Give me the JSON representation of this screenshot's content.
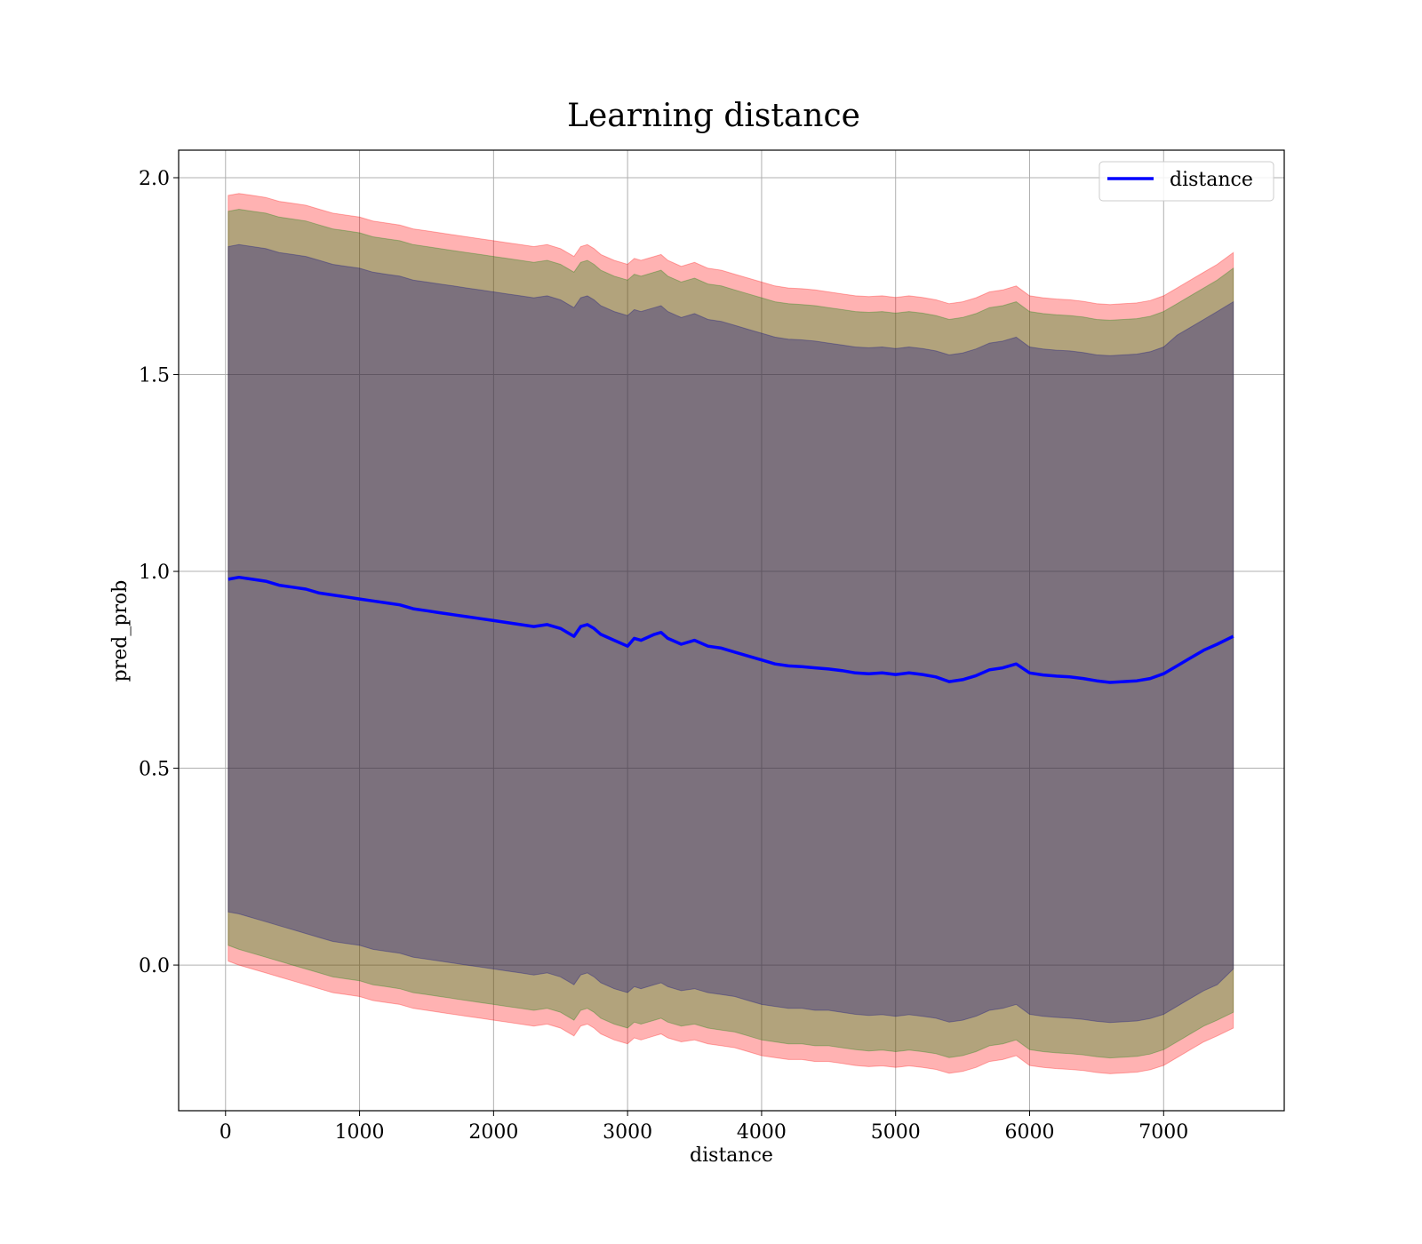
{
  "chart_data": {
    "type": "line",
    "title": "Learning distance",
    "xlabel": "distance",
    "ylabel": "pred_prob",
    "xlim": [
      -350,
      7900
    ],
    "ylim": [
      -0.37,
      2.07
    ],
    "xticks": [
      0,
      1000,
      2000,
      3000,
      4000,
      5000,
      6000,
      7000
    ],
    "xtick_labels": [
      "0",
      "1000",
      "2000",
      "3000",
      "4000",
      "5000",
      "6000",
      "7000"
    ],
    "yticks": [
      0.0,
      0.5,
      1.0,
      1.5,
      2.0
    ],
    "ytick_labels": [
      "0.0",
      "0.5",
      "1.0",
      "1.5",
      "2.0"
    ],
    "grid": true,
    "legend_position": "top-right",
    "series": [
      {
        "name": "distance",
        "color": "#0000ff",
        "x": [
          20,
          100,
          200,
          300,
          400,
          500,
          600,
          700,
          800,
          900,
          1000,
          1100,
          1200,
          1300,
          1400,
          1500,
          1600,
          1700,
          1800,
          1900,
          2000,
          2100,
          2200,
          2300,
          2400,
          2500,
          2600,
          2650,
          2700,
          2750,
          2800,
          2900,
          3000,
          3050,
          3100,
          3200,
          3250,
          3300,
          3400,
          3500,
          3600,
          3700,
          3800,
          3900,
          4000,
          4100,
          4200,
          4300,
          4400,
          4500,
          4600,
          4700,
          4800,
          4900,
          5000,
          5100,
          5200,
          5300,
          5400,
          5500,
          5600,
          5700,
          5800,
          5900,
          6000,
          6100,
          6200,
          6300,
          6400,
          6500,
          6600,
          6700,
          6800,
          6900,
          7000,
          7100,
          7200,
          7300,
          7400,
          7520
        ],
        "values": [
          0.98,
          0.985,
          0.98,
          0.975,
          0.965,
          0.96,
          0.955,
          0.945,
          0.94,
          0.935,
          0.93,
          0.925,
          0.92,
          0.915,
          0.905,
          0.9,
          0.895,
          0.89,
          0.885,
          0.88,
          0.875,
          0.87,
          0.865,
          0.86,
          0.865,
          0.855,
          0.835,
          0.86,
          0.865,
          0.855,
          0.84,
          0.825,
          0.81,
          0.83,
          0.825,
          0.84,
          0.845,
          0.83,
          0.815,
          0.825,
          0.81,
          0.805,
          0.795,
          0.785,
          0.775,
          0.765,
          0.76,
          0.758,
          0.755,
          0.752,
          0.748,
          0.742,
          0.74,
          0.742,
          0.738,
          0.742,
          0.738,
          0.732,
          0.72,
          0.725,
          0.735,
          0.75,
          0.755,
          0.765,
          0.742,
          0.737,
          0.734,
          0.732,
          0.728,
          0.722,
          0.718,
          0.72,
          0.722,
          0.728,
          0.74,
          0.76,
          0.78,
          0.8,
          0.815,
          0.835
        ]
      }
    ],
    "bands": [
      {
        "color": "#ff0000",
        "opacity": 0.3,
        "lower": [
          0.01,
          0.0,
          -0.01,
          -0.02,
          -0.03,
          -0.04,
          -0.05,
          -0.06,
          -0.07,
          -0.075,
          -0.08,
          -0.09,
          -0.095,
          -0.1,
          -0.11,
          -0.115,
          -0.12,
          -0.125,
          -0.13,
          -0.135,
          -0.14,
          -0.145,
          -0.15,
          -0.155,
          -0.15,
          -0.16,
          -0.18,
          -0.155,
          -0.15,
          -0.16,
          -0.175,
          -0.19,
          -0.2,
          -0.185,
          -0.19,
          -0.18,
          -0.175,
          -0.185,
          -0.195,
          -0.19,
          -0.2,
          -0.205,
          -0.21,
          -0.22,
          -0.23,
          -0.235,
          -0.24,
          -0.24,
          -0.245,
          -0.245,
          -0.25,
          -0.255,
          -0.258,
          -0.256,
          -0.26,
          -0.256,
          -0.26,
          -0.265,
          -0.275,
          -0.27,
          -0.26,
          -0.245,
          -0.24,
          -0.23,
          -0.255,
          -0.26,
          -0.263,
          -0.265,
          -0.268,
          -0.273,
          -0.276,
          -0.274,
          -0.272,
          -0.266,
          -0.255,
          -0.235,
          -0.215,
          -0.195,
          -0.18,
          -0.16
        ],
        "upper": [
          1.955,
          1.96,
          1.955,
          1.95,
          1.94,
          1.935,
          1.93,
          1.92,
          1.91,
          1.905,
          1.9,
          1.89,
          1.885,
          1.88,
          1.87,
          1.865,
          1.86,
          1.855,
          1.85,
          1.845,
          1.84,
          1.835,
          1.83,
          1.825,
          1.83,
          1.82,
          1.8,
          1.825,
          1.83,
          1.82,
          1.805,
          1.79,
          1.78,
          1.795,
          1.79,
          1.8,
          1.805,
          1.79,
          1.775,
          1.785,
          1.77,
          1.765,
          1.755,
          1.745,
          1.735,
          1.725,
          1.72,
          1.718,
          1.715,
          1.71,
          1.705,
          1.7,
          1.698,
          1.7,
          1.696,
          1.7,
          1.696,
          1.69,
          1.68,
          1.685,
          1.695,
          1.71,
          1.715,
          1.725,
          1.7,
          1.695,
          1.692,
          1.69,
          1.686,
          1.68,
          1.678,
          1.68,
          1.682,
          1.688,
          1.7,
          1.72,
          1.74,
          1.76,
          1.78,
          1.81
        ]
      },
      {
        "color": "#008000",
        "opacity": 0.3,
        "lower": [
          0.05,
          0.04,
          0.03,
          0.02,
          0.01,
          0.0,
          -0.01,
          -0.02,
          -0.03,
          -0.035,
          -0.04,
          -0.05,
          -0.055,
          -0.06,
          -0.07,
          -0.075,
          -0.08,
          -0.085,
          -0.09,
          -0.095,
          -0.1,
          -0.105,
          -0.11,
          -0.115,
          -0.11,
          -0.12,
          -0.14,
          -0.115,
          -0.11,
          -0.12,
          -0.135,
          -0.15,
          -0.16,
          -0.145,
          -0.15,
          -0.14,
          -0.135,
          -0.145,
          -0.155,
          -0.15,
          -0.16,
          -0.165,
          -0.17,
          -0.18,
          -0.19,
          -0.195,
          -0.2,
          -0.2,
          -0.205,
          -0.205,
          -0.21,
          -0.215,
          -0.218,
          -0.216,
          -0.22,
          -0.216,
          -0.22,
          -0.225,
          -0.235,
          -0.23,
          -0.22,
          -0.205,
          -0.2,
          -0.19,
          -0.215,
          -0.22,
          -0.223,
          -0.225,
          -0.228,
          -0.233,
          -0.236,
          -0.234,
          -0.232,
          -0.226,
          -0.215,
          -0.195,
          -0.175,
          -0.155,
          -0.14,
          -0.12
        ],
        "upper": [
          1.915,
          1.92,
          1.915,
          1.91,
          1.9,
          1.895,
          1.89,
          1.88,
          1.87,
          1.865,
          1.86,
          1.85,
          1.845,
          1.84,
          1.83,
          1.825,
          1.82,
          1.815,
          1.81,
          1.805,
          1.8,
          1.795,
          1.79,
          1.785,
          1.79,
          1.78,
          1.76,
          1.785,
          1.79,
          1.78,
          1.765,
          1.75,
          1.74,
          1.755,
          1.75,
          1.76,
          1.765,
          1.75,
          1.735,
          1.745,
          1.73,
          1.725,
          1.715,
          1.705,
          1.695,
          1.685,
          1.68,
          1.678,
          1.675,
          1.67,
          1.665,
          1.66,
          1.658,
          1.66,
          1.656,
          1.66,
          1.656,
          1.65,
          1.64,
          1.645,
          1.655,
          1.67,
          1.675,
          1.685,
          1.66,
          1.655,
          1.652,
          1.65,
          1.646,
          1.64,
          1.638,
          1.64,
          1.642,
          1.648,
          1.66,
          1.68,
          1.7,
          1.72,
          1.74,
          1.77
        ]
      },
      {
        "color": "#000080",
        "opacity": 0.3,
        "lower": [
          0.135,
          0.13,
          0.12,
          0.11,
          0.1,
          0.09,
          0.08,
          0.07,
          0.06,
          0.055,
          0.05,
          0.04,
          0.035,
          0.03,
          0.02,
          0.015,
          0.01,
          0.005,
          0.0,
          -0.005,
          -0.01,
          -0.015,
          -0.02,
          -0.025,
          -0.02,
          -0.03,
          -0.05,
          -0.025,
          -0.02,
          -0.03,
          -0.045,
          -0.06,
          -0.07,
          -0.055,
          -0.06,
          -0.05,
          -0.045,
          -0.055,
          -0.065,
          -0.06,
          -0.07,
          -0.075,
          -0.08,
          -0.09,
          -0.1,
          -0.105,
          -0.11,
          -0.11,
          -0.115,
          -0.115,
          -0.12,
          -0.125,
          -0.128,
          -0.126,
          -0.13,
          -0.126,
          -0.13,
          -0.135,
          -0.145,
          -0.14,
          -0.13,
          -0.115,
          -0.11,
          -0.1,
          -0.125,
          -0.13,
          -0.133,
          -0.135,
          -0.138,
          -0.143,
          -0.146,
          -0.144,
          -0.142,
          -0.136,
          -0.125,
          -0.105,
          -0.085,
          -0.065,
          -0.05,
          -0.01
        ],
        "upper": [
          1.825,
          1.83,
          1.825,
          1.82,
          1.81,
          1.805,
          1.8,
          1.79,
          1.78,
          1.775,
          1.77,
          1.76,
          1.755,
          1.75,
          1.74,
          1.735,
          1.73,
          1.725,
          1.72,
          1.715,
          1.71,
          1.705,
          1.7,
          1.695,
          1.7,
          1.69,
          1.67,
          1.695,
          1.7,
          1.69,
          1.675,
          1.66,
          1.65,
          1.665,
          1.66,
          1.67,
          1.675,
          1.66,
          1.645,
          1.655,
          1.64,
          1.635,
          1.625,
          1.615,
          1.605,
          1.595,
          1.59,
          1.588,
          1.585,
          1.58,
          1.575,
          1.57,
          1.568,
          1.57,
          1.566,
          1.57,
          1.566,
          1.56,
          1.55,
          1.555,
          1.565,
          1.58,
          1.585,
          1.595,
          1.57,
          1.565,
          1.562,
          1.56,
          1.556,
          1.55,
          1.548,
          1.55,
          1.552,
          1.558,
          1.57,
          1.6,
          1.62,
          1.64,
          1.66,
          1.685
        ]
      }
    ]
  }
}
